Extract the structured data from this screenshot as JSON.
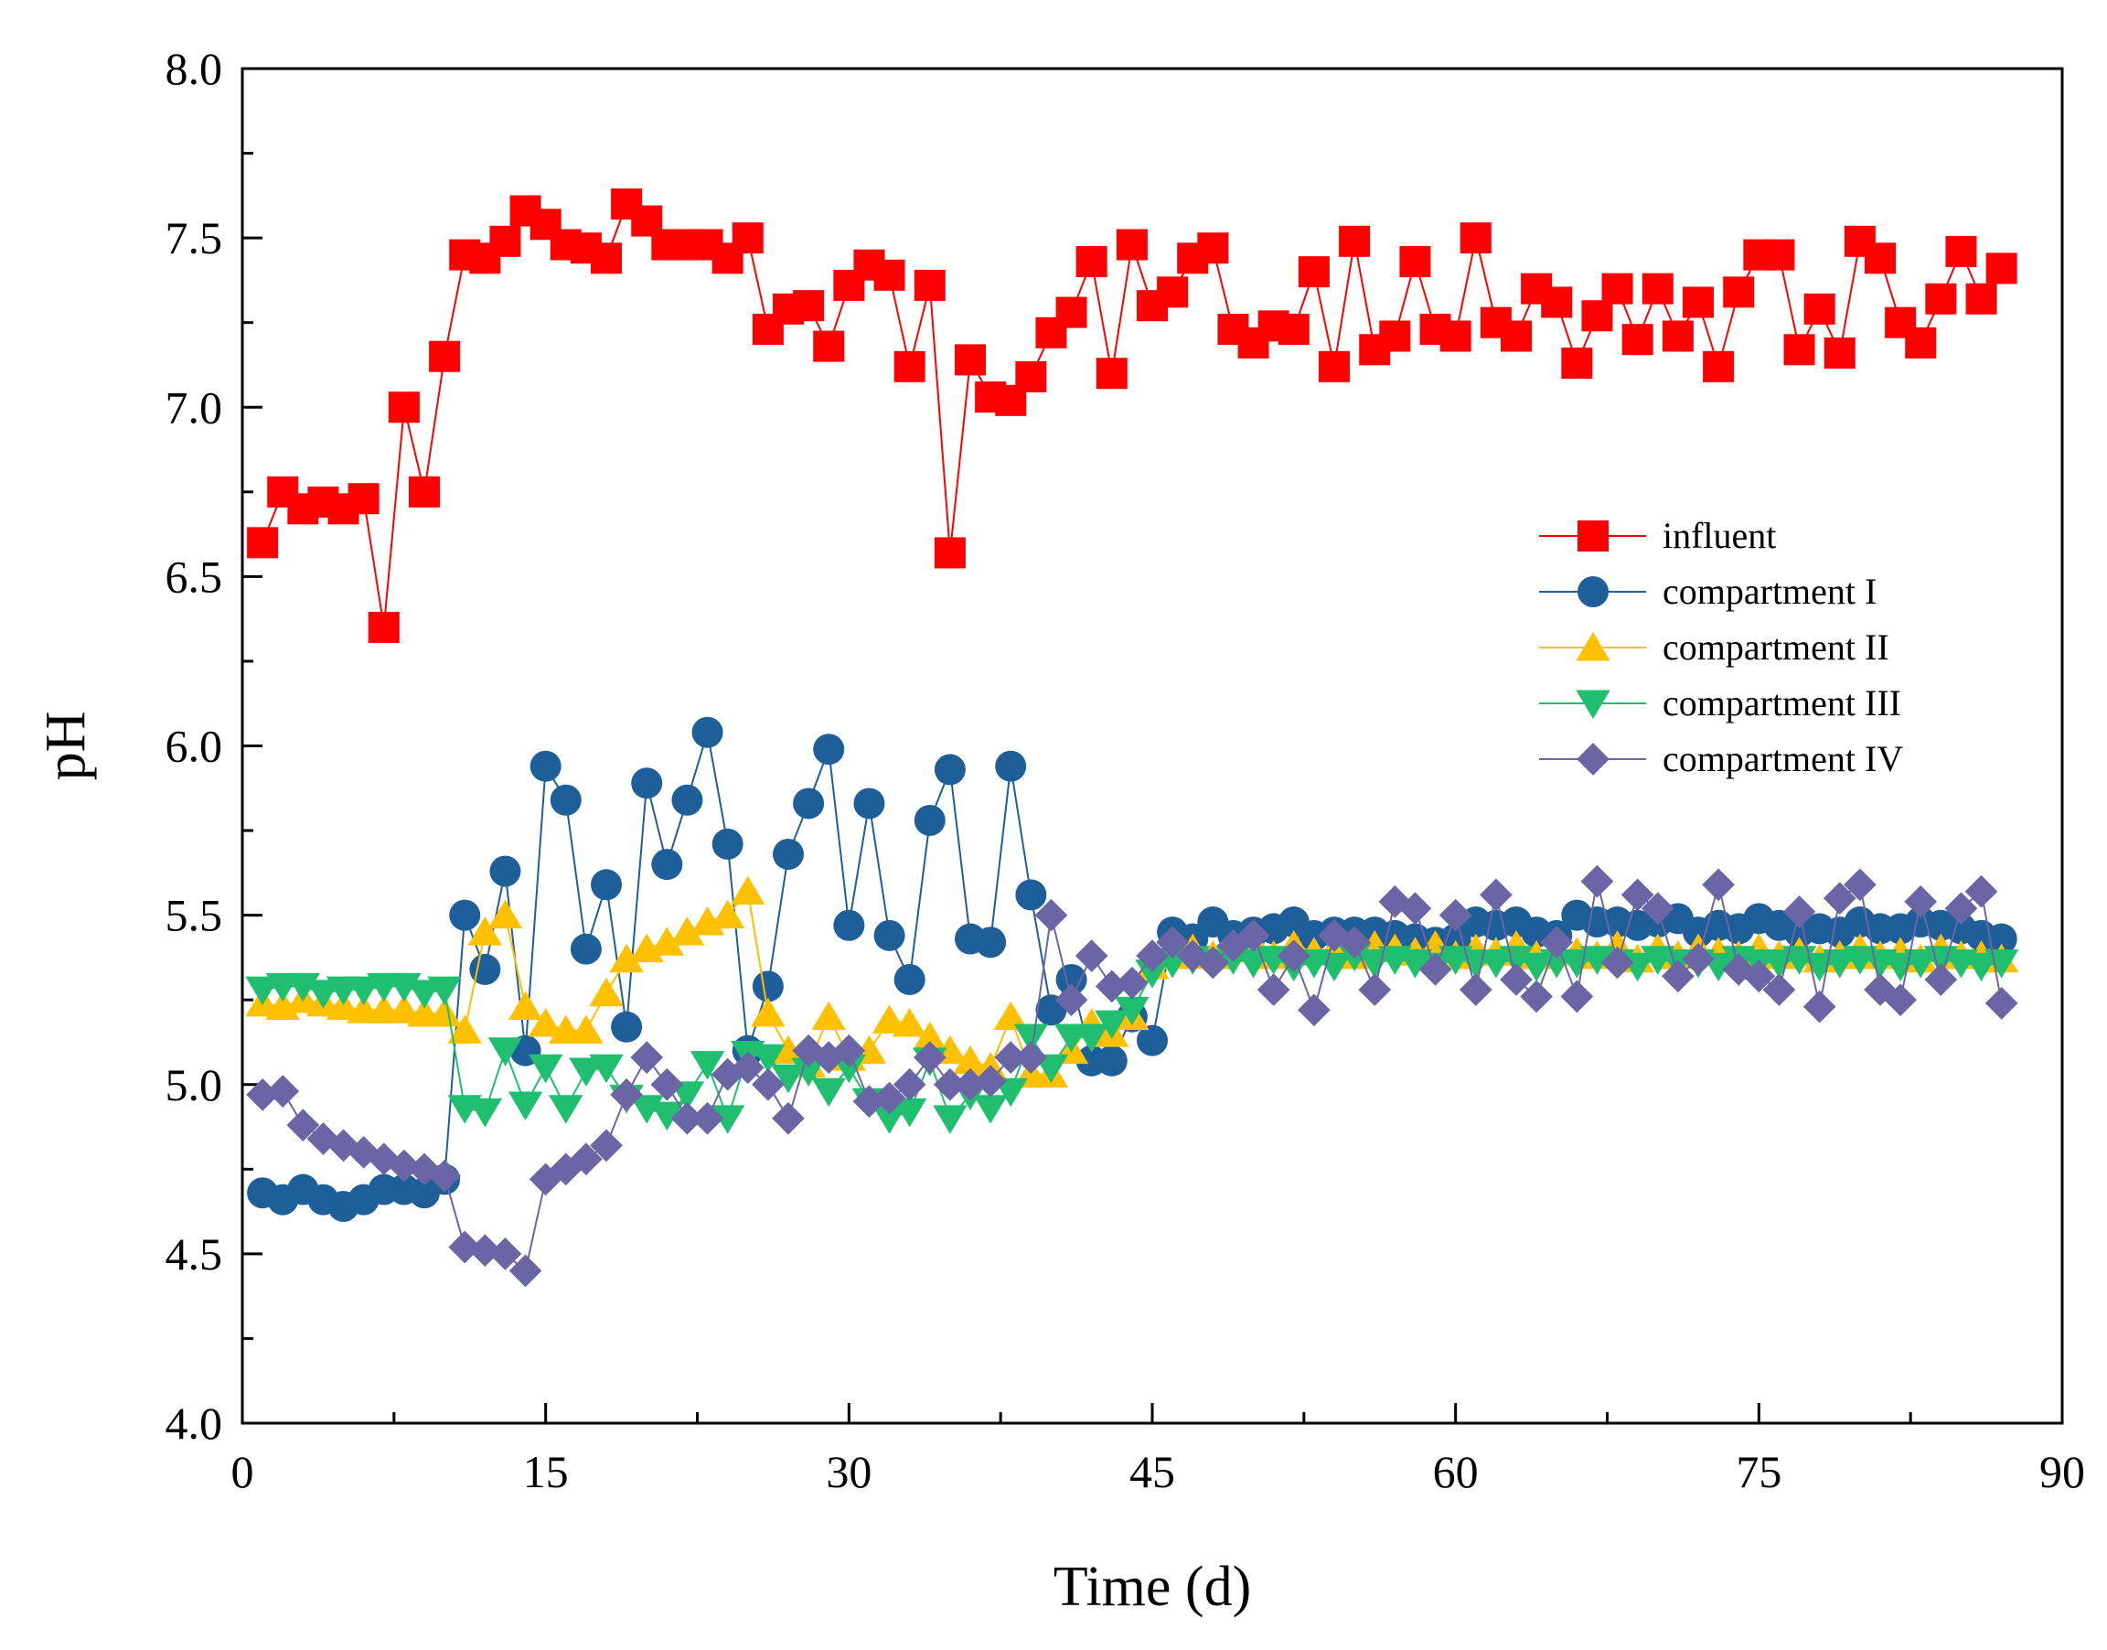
{
  "chart_data": {
    "type": "line",
    "title": "",
    "xlabel": "Time (d)",
    "ylabel": "pH",
    "xlim": [
      0,
      90
    ],
    "ylim": [
      4.0,
      8.0
    ],
    "xticks": [
      "0",
      "15",
      "30",
      "45",
      "60",
      "75",
      "90"
    ],
    "yticks": [
      "4.0",
      "4.5",
      "5.0",
      "5.5",
      "6.0",
      "6.5",
      "7.0",
      "7.5",
      "8.0"
    ],
    "legend_position": "right",
    "series": [
      {
        "name": "influent",
        "color": "#ff0000",
        "marker": "square",
        "x": [
          1,
          2,
          3,
          4,
          5,
          6,
          7,
          8,
          9,
          10,
          11,
          12,
          13,
          14,
          15,
          16,
          17,
          18,
          19,
          20,
          21,
          22,
          23,
          24,
          25,
          26,
          27,
          28,
          29,
          30,
          31,
          32,
          33,
          34,
          35,
          36,
          37,
          38,
          39,
          40,
          41,
          42,
          43,
          44,
          45,
          46,
          47,
          48,
          49,
          50,
          51,
          52,
          53,
          54,
          55,
          56,
          57,
          58,
          59,
          60,
          61,
          62,
          63,
          64,
          65,
          66,
          67,
          68,
          69,
          70,
          71,
          72,
          73,
          74,
          75,
          76,
          77,
          78,
          79,
          80,
          81,
          82,
          83,
          84,
          85,
          86,
          87
        ],
        "values": [
          6.6,
          6.75,
          6.7,
          6.72,
          6.7,
          6.73,
          6.35,
          7.0,
          6.75,
          7.15,
          7.45,
          7.44,
          7.49,
          7.58,
          7.54,
          7.48,
          7.47,
          7.44,
          7.6,
          7.55,
          7.48,
          7.48,
          7.48,
          7.44,
          7.5,
          7.23,
          7.29,
          7.3,
          7.18,
          7.36,
          7.42,
          7.39,
          7.12,
          7.36,
          6.57,
          7.14,
          7.03,
          7.02,
          7.09,
          7.22,
          7.28,
          7.43,
          7.1,
          7.48,
          7.3,
          7.34,
          7.44,
          7.47,
          7.23,
          7.19,
          7.24,
          7.23,
          7.4,
          7.12,
          7.49,
          7.17,
          7.21,
          7.43,
          7.23,
          7.21,
          7.5,
          7.25,
          7.21,
          7.35,
          7.31,
          7.13,
          7.27,
          7.35,
          7.2,
          7.35,
          7.21,
          7.31,
          7.12,
          7.34,
          7.45,
          7.45,
          7.17,
          7.29,
          7.16,
          7.49,
          7.44,
          7.25,
          7.19,
          7.32,
          7.46,
          7.32,
          7.41
        ]
      },
      {
        "name": "compartment I",
        "color": "#1f5f99",
        "marker": "circle",
        "x": [
          1,
          2,
          3,
          4,
          5,
          6,
          7,
          8,
          9,
          10,
          11,
          12,
          13,
          14,
          15,
          16,
          17,
          18,
          19,
          20,
          21,
          22,
          23,
          24,
          25,
          26,
          27,
          28,
          29,
          30,
          31,
          32,
          33,
          34,
          35,
          36,
          37,
          38,
          39,
          40,
          41,
          42,
          43,
          44,
          45,
          46,
          47,
          48,
          49,
          50,
          51,
          52,
          53,
          54,
          55,
          56,
          57,
          58,
          59,
          60,
          61,
          62,
          63,
          64,
          65,
          66,
          67,
          68,
          69,
          70,
          71,
          72,
          73,
          74,
          75,
          76,
          77,
          78,
          79,
          80,
          81,
          82,
          83,
          84,
          85,
          86,
          87
        ],
        "values": [
          4.68,
          4.66,
          4.69,
          4.66,
          4.64,
          4.66,
          4.69,
          4.69,
          4.68,
          4.72,
          5.5,
          5.34,
          5.63,
          5.1,
          5.94,
          5.84,
          5.4,
          5.59,
          5.17,
          5.89,
          5.65,
          5.84,
          6.04,
          5.71,
          5.1,
          5.29,
          5.68,
          5.83,
          5.99,
          5.47,
          5.83,
          5.44,
          5.31,
          5.78,
          5.93,
          5.43,
          5.42,
          5.94,
          5.56,
          5.22,
          5.31,
          5.07,
          5.07,
          5.2,
          5.13,
          5.45,
          5.43,
          5.48,
          5.44,
          5.45,
          5.46,
          5.48,
          5.44,
          5.45,
          5.45,
          5.45,
          5.44,
          5.43,
          5.42,
          5.43,
          5.48,
          5.47,
          5.48,
          5.45,
          5.44,
          5.5,
          5.48,
          5.48,
          5.47,
          5.48,
          5.49,
          5.45,
          5.47,
          5.46,
          5.49,
          5.47,
          5.45,
          5.46,
          5.45,
          5.48,
          5.46,
          5.46,
          5.48,
          5.47,
          5.46,
          5.44,
          5.43
        ]
      },
      {
        "name": "compartment II",
        "color": "#ffc000",
        "marker": "triangle-up",
        "x": [
          1,
          2,
          3,
          4,
          5,
          6,
          7,
          8,
          9,
          10,
          11,
          12,
          13,
          14,
          15,
          16,
          17,
          18,
          19,
          20,
          21,
          22,
          23,
          24,
          25,
          26,
          27,
          28,
          29,
          30,
          31,
          32,
          33,
          34,
          35,
          36,
          37,
          38,
          39,
          40,
          41,
          42,
          43,
          44,
          45,
          46,
          47,
          48,
          49,
          50,
          51,
          52,
          53,
          54,
          55,
          56,
          57,
          58,
          59,
          60,
          61,
          62,
          63,
          64,
          65,
          66,
          67,
          68,
          69,
          70,
          71,
          72,
          73,
          74,
          75,
          76,
          77,
          78,
          79,
          80,
          81,
          82,
          83,
          84,
          85,
          86,
          87
        ],
        "values": [
          5.24,
          5.23,
          5.25,
          5.24,
          5.23,
          5.22,
          5.22,
          5.22,
          5.21,
          5.21,
          5.16,
          5.45,
          5.5,
          5.23,
          5.18,
          5.16,
          5.16,
          5.27,
          5.37,
          5.4,
          5.42,
          5.45,
          5.48,
          5.5,
          5.57,
          5.21,
          5.1,
          5.06,
          5.2,
          5.08,
          5.1,
          5.19,
          5.18,
          5.14,
          5.1,
          5.07,
          5.05,
          5.2,
          5.03,
          5.03,
          5.1,
          5.18,
          5.15,
          5.2,
          5.35,
          5.38,
          5.4,
          5.38,
          5.4,
          5.42,
          5.38,
          5.41,
          5.39,
          5.4,
          5.38,
          5.41,
          5.4,
          5.39,
          5.41,
          5.38,
          5.4,
          5.39,
          5.41,
          5.38,
          5.4,
          5.39,
          5.38,
          5.41,
          5.37,
          5.4,
          5.38,
          5.4,
          5.39,
          5.38,
          5.4,
          5.38,
          5.39,
          5.37,
          5.38,
          5.4,
          5.38,
          5.39,
          5.37,
          5.4,
          5.38,
          5.38,
          5.37
        ]
      },
      {
        "name": "compartment III",
        "color": "#1fbf6f",
        "marker": "triangle-down",
        "x": [
          1,
          2,
          3,
          4,
          5,
          6,
          7,
          8,
          9,
          10,
          11,
          12,
          13,
          14,
          15,
          16,
          17,
          18,
          19,
          20,
          21,
          22,
          23,
          24,
          25,
          26,
          27,
          28,
          29,
          30,
          31,
          32,
          33,
          34,
          35,
          36,
          37,
          38,
          39,
          40,
          41,
          42,
          43,
          44,
          45,
          46,
          47,
          48,
          49,
          50,
          51,
          52,
          53,
          54,
          55,
          56,
          57,
          58,
          59,
          60,
          61,
          62,
          63,
          64,
          65,
          66,
          67,
          68,
          69,
          70,
          71,
          72,
          73,
          74,
          75,
          76,
          77,
          78,
          79,
          80,
          81,
          82,
          83,
          84,
          85,
          86,
          87
        ],
        "values": [
          5.28,
          5.29,
          5.29,
          5.27,
          5.28,
          5.28,
          5.29,
          5.29,
          5.27,
          5.28,
          4.93,
          4.92,
          5.1,
          4.94,
          5.05,
          4.93,
          5.04,
          5.05,
          4.96,
          4.93,
          4.91,
          4.97,
          5.06,
          4.9,
          5.09,
          5.08,
          5.02,
          5.04,
          4.98,
          5.05,
          4.95,
          4.9,
          4.92,
          5.07,
          4.9,
          4.97,
          4.93,
          4.98,
          5.14,
          5.05,
          5.14,
          5.14,
          5.18,
          5.22,
          5.33,
          5.36,
          5.37,
          5.36,
          5.37,
          5.36,
          5.37,
          5.35,
          5.36,
          5.35,
          5.38,
          5.36,
          5.37,
          5.36,
          5.35,
          5.37,
          5.36,
          5.36,
          5.37,
          5.35,
          5.36,
          5.36,
          5.37,
          5.36,
          5.35,
          5.37,
          5.36,
          5.36,
          5.35,
          5.37,
          5.36,
          5.36,
          5.37,
          5.35,
          5.36,
          5.37,
          5.36,
          5.35,
          5.36,
          5.37,
          5.36,
          5.35,
          5.36
        ]
      },
      {
        "name": "compartment IV",
        "color": "#6a66a6",
        "marker": "diamond",
        "x": [
          1,
          2,
          3,
          4,
          5,
          6,
          7,
          8,
          9,
          10,
          11,
          12,
          13,
          14,
          15,
          16,
          17,
          18,
          19,
          20,
          21,
          22,
          23,
          24,
          25,
          26,
          27,
          28,
          29,
          30,
          31,
          32,
          33,
          34,
          35,
          36,
          37,
          38,
          39,
          40,
          41,
          42,
          43,
          44,
          45,
          46,
          47,
          48,
          49,
          50,
          51,
          52,
          53,
          54,
          55,
          56,
          57,
          58,
          59,
          60,
          61,
          62,
          63,
          64,
          65,
          66,
          67,
          68,
          69,
          70,
          71,
          72,
          73,
          74,
          75,
          76,
          77,
          78,
          79,
          80,
          81,
          82,
          83,
          84,
          85,
          86,
          87
        ],
        "values": [
          4.97,
          4.98,
          4.88,
          4.84,
          4.82,
          4.8,
          4.78,
          4.76,
          4.75,
          4.73,
          4.52,
          4.51,
          4.5,
          4.45,
          4.72,
          4.75,
          4.78,
          4.82,
          4.97,
          5.08,
          5.0,
          4.9,
          4.9,
          5.03,
          5.05,
          5.0,
          4.9,
          5.1,
          5.08,
          5.1,
          4.95,
          4.96,
          5.0,
          5.08,
          5.0,
          5.0,
          5.01,
          5.08,
          5.08,
          5.5,
          5.25,
          5.38,
          5.29,
          5.3,
          5.38,
          5.42,
          5.38,
          5.36,
          5.41,
          5.44,
          5.28,
          5.38,
          5.22,
          5.44,
          5.42,
          5.28,
          5.54,
          5.52,
          5.34,
          5.5,
          5.28,
          5.56,
          5.31,
          5.26,
          5.42,
          5.26,
          5.6,
          5.36,
          5.56,
          5.52,
          5.32,
          5.37,
          5.59,
          5.34,
          5.32,
          5.28,
          5.51,
          5.23,
          5.55,
          5.59,
          5.28,
          5.25,
          5.54,
          5.31,
          5.52,
          5.57,
          5.24
        ]
      }
    ]
  }
}
